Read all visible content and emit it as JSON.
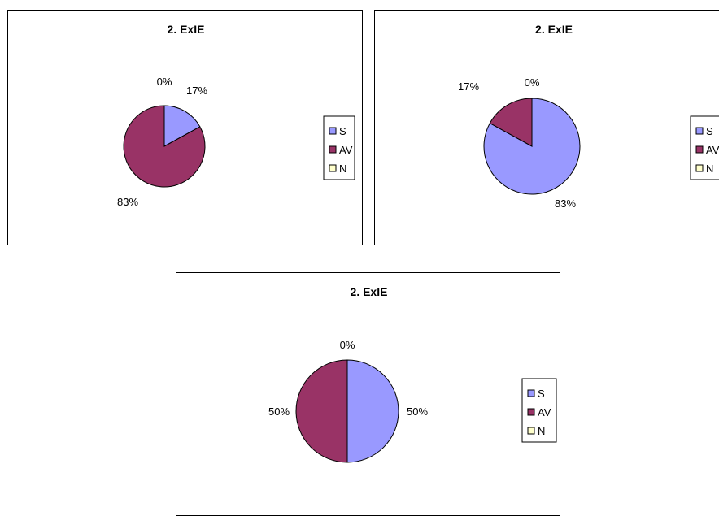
{
  "chart_data": [
    {
      "type": "pie",
      "title": "2. ExIE",
      "categories": [
        "S",
        "AV",
        "N"
      ],
      "values": [
        17,
        83,
        0
      ],
      "labels": [
        "17%",
        "83%",
        "0%"
      ],
      "colors": [
        "#9999FF",
        "#993366",
        "#FFFFCC"
      ],
      "legend": "right"
    },
    {
      "type": "pie",
      "title": "2. ExIE",
      "categories": [
        "S",
        "AV",
        "N"
      ],
      "values": [
        83,
        17,
        0
      ],
      "labels": [
        "83%",
        "17%",
        "0%"
      ],
      "colors": [
        "#9999FF",
        "#993366",
        "#FFFFCC"
      ],
      "legend": "right"
    },
    {
      "type": "pie",
      "title": "2. ExIE",
      "categories": [
        "S",
        "AV",
        "N"
      ],
      "values": [
        50,
        50,
        0
      ],
      "labels": [
        "50%",
        "50%",
        "0%"
      ],
      "colors": [
        "#9999FF",
        "#993366",
        "#FFFFCC"
      ],
      "legend": "right"
    }
  ]
}
